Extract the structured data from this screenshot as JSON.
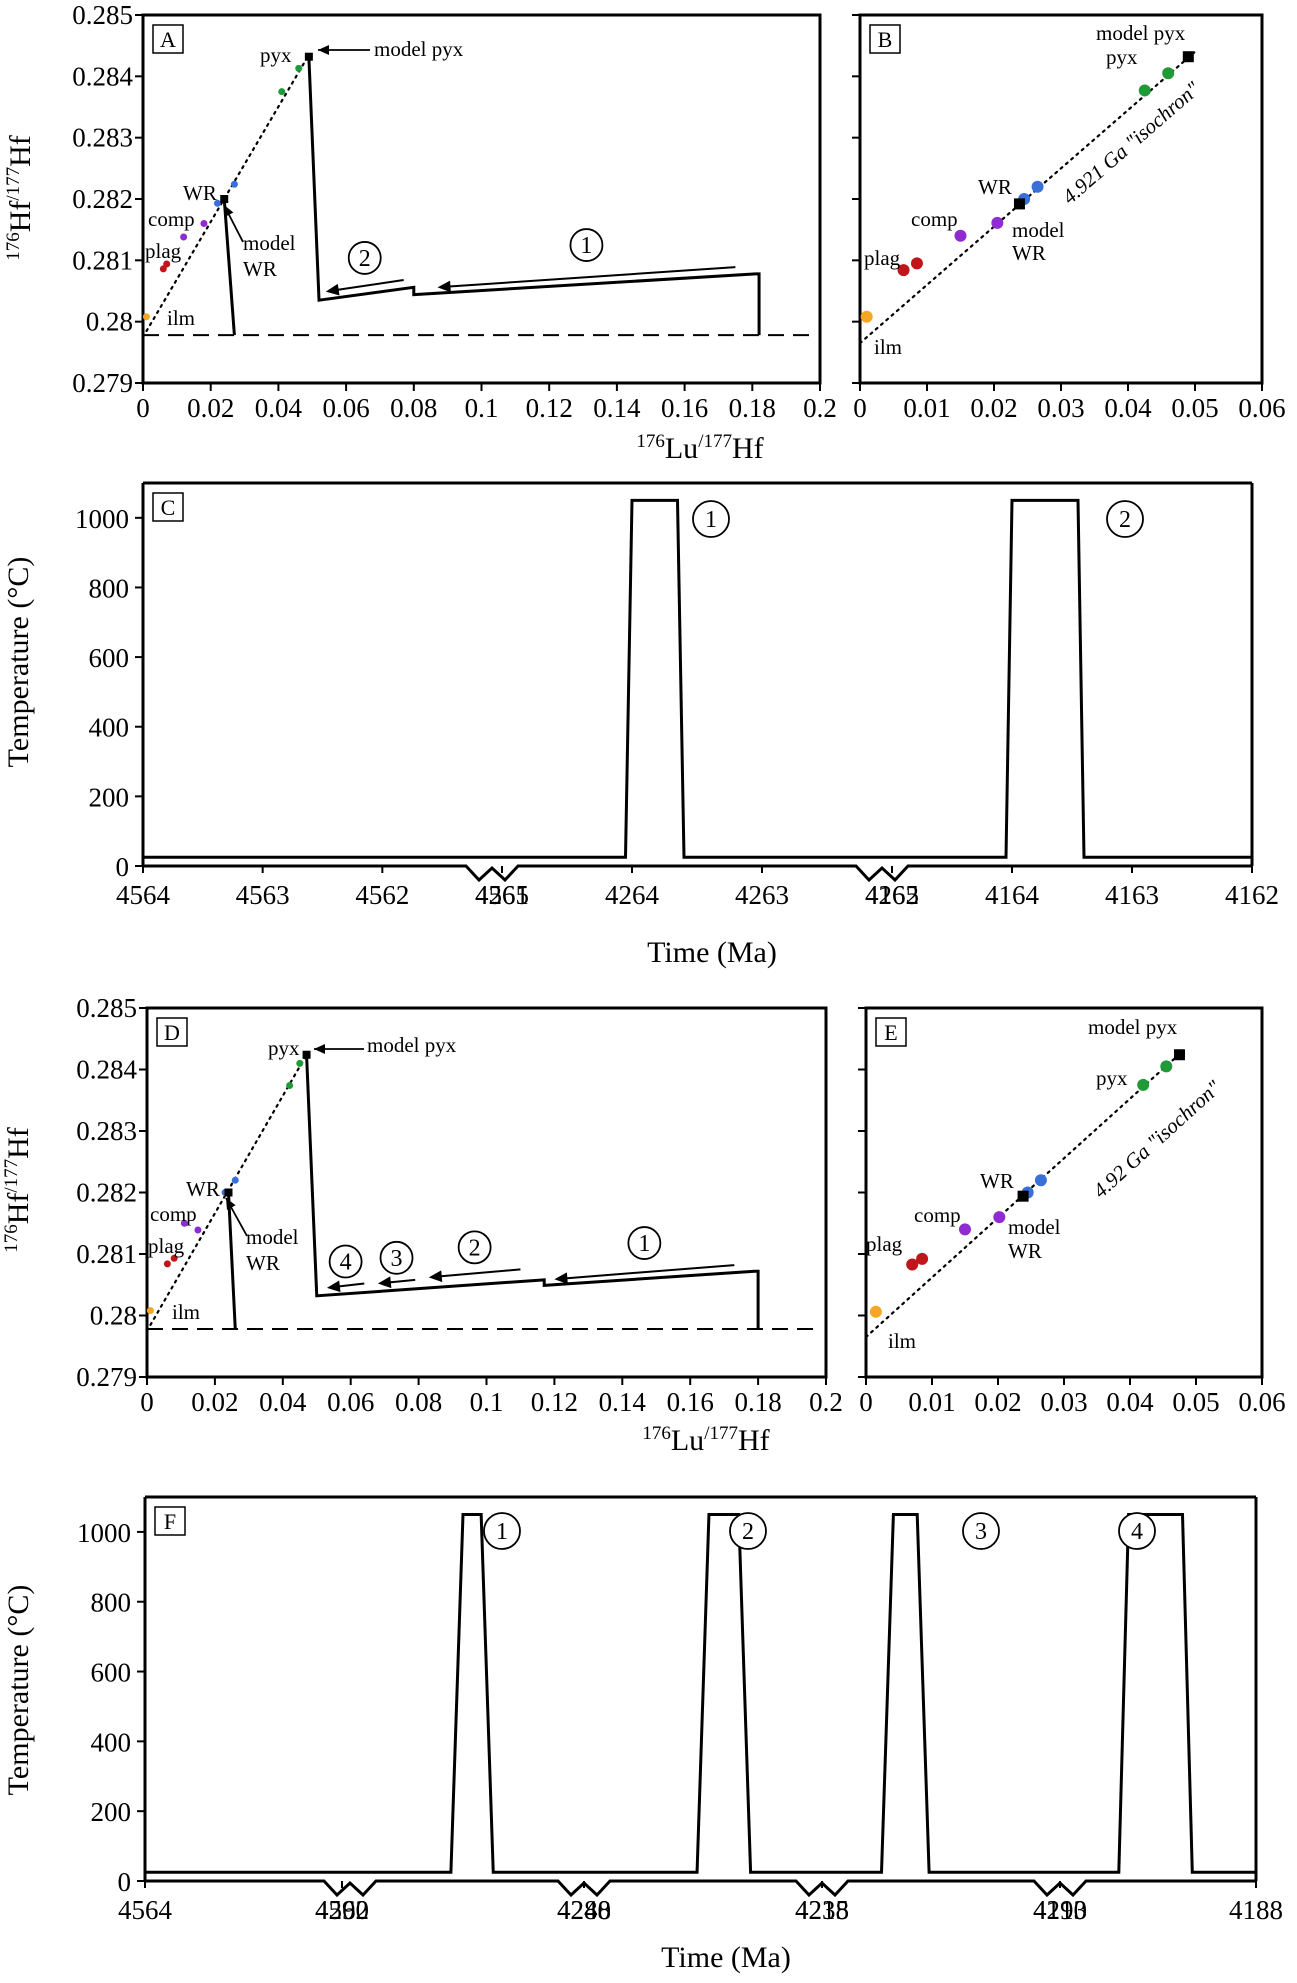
{
  "chart_data": [
    {
      "panel": "A",
      "type": "line",
      "xlabel": "176Lu/177Hf",
      "ylabel": "176Hf/177Hf",
      "xlim": [
        0,
        0.2
      ],
      "ylim": [
        0.279,
        0.285
      ],
      "xticks": [
        "0",
        "0.02",
        "0.04",
        "0.06",
        "0.08",
        "0.1",
        "0.12",
        "0.14",
        "0.16",
        "0.18",
        "0.2"
      ],
      "yticks": [
        "0.285",
        "0.284",
        "0.283",
        "0.282",
        "0.281",
        "0.28",
        "0.279"
      ],
      "reference_line": {
        "style": "dashed",
        "y": 0.27978
      },
      "isochron": {
        "style": "dotted",
        "x": [
          0,
          0.049
        ],
        "y": [
          0.27975,
          0.28435
        ]
      },
      "minerals": [
        {
          "name": "ilm",
          "color": "#f5a623",
          "x": [
            0.001
          ],
          "y": [
            0.28008
          ]
        },
        {
          "name": "plag",
          "color": "#c0161b",
          "x": [
            0.006,
            0.007
          ],
          "y": [
            0.28086,
            0.28094
          ]
        },
        {
          "name": "comp",
          "color": "#8e2bd1",
          "x": [
            0.012,
            0.018
          ],
          "y": [
            0.28138,
            0.2816
          ]
        },
        {
          "name": "WR",
          "color": "#3a6fd8",
          "x": [
            0.022,
            0.024,
            0.027
          ],
          "y": [
            0.28193,
            0.282,
            0.28224
          ]
        },
        {
          "name": "pyx",
          "color": "#1f9a36",
          "x": [
            0.041,
            0.046
          ],
          "y": [
            0.28375,
            0.28413
          ]
        }
      ],
      "model_points": [
        {
          "name": "model pyx",
          "x": 0.049,
          "y": 0.28432
        },
        {
          "name": "model WR",
          "x": 0.024,
          "y": 0.282
        }
      ],
      "series": [
        {
          "name": "model WR path",
          "x": [
            0.024,
            0.027,
            0.027
          ],
          "y": [
            0.282,
            0.27978,
            0.27978
          ]
        },
        {
          "name": "model pyx path",
          "x": [
            0.049,
            0.052,
            0.08,
            0.08,
            0.181,
            0.182,
            0.182
          ],
          "y": [
            0.28432,
            0.28035,
            0.28056,
            0.28044,
            0.28078,
            0.28078,
            0.27978
          ]
        }
      ],
      "events": [
        {
          "label": "1",
          "arrow_from": [
            0.175,
            0.28089
          ],
          "arrow_to": [
            0.087,
            0.28056
          ]
        },
        {
          "label": "2",
          "arrow_from": [
            0.077,
            0.28068
          ],
          "arrow_to": [
            0.054,
            0.28049
          ]
        }
      ],
      "annotations": [
        "model pyx",
        "pyx",
        "WR",
        "comp",
        "plag",
        "ilm",
        "model",
        "WR"
      ]
    },
    {
      "panel": "B",
      "type": "scatter",
      "xlim": [
        0,
        0.06
      ],
      "ylim": [
        0.279,
        0.285
      ],
      "xticks": [
        "0",
        "0.01",
        "0.02",
        "0.03",
        "0.04",
        "0.05",
        "0.06"
      ],
      "isochron": {
        "style": "dotted",
        "label": "4.921 Ga \"isochron\"",
        "x": [
          0,
          0.05
        ],
        "y": [
          0.27965,
          0.2844
        ]
      },
      "minerals": [
        {
          "name": "ilm",
          "color": "#f5a623",
          "x": [
            0.001
          ],
          "y": [
            0.28008
          ]
        },
        {
          "name": "plag",
          "color": "#c0161b",
          "x": [
            0.0065,
            0.0085
          ],
          "y": [
            0.28084,
            0.28095
          ]
        },
        {
          "name": "comp",
          "color": "#8e2bd1",
          "x": [
            0.015,
            0.0205
          ],
          "y": [
            0.2814,
            0.28161
          ]
        },
        {
          "name": "WR",
          "color": "#3a6fd8",
          "x": [
            0.0245,
            0.0265
          ],
          "y": [
            0.282,
            0.2822
          ]
        },
        {
          "name": "pyx",
          "color": "#1f9a36",
          "x": [
            0.0425,
            0.046
          ],
          "y": [
            0.28377,
            0.28405
          ]
        }
      ],
      "model_points": [
        {
          "name": "model pyx",
          "x": 0.049,
          "y": 0.28432
        },
        {
          "name": "model WR",
          "x": 0.0238,
          "y": 0.28192
        }
      ],
      "annotations": [
        "model pyx",
        "pyx",
        "WR",
        "comp",
        "plag",
        "ilm",
        "model",
        "WR"
      ]
    },
    {
      "panel": "C",
      "type": "line",
      "xlabel": "Time (Ma)",
      "ylabel": "Temperature (°C)",
      "ylim": [
        0,
        1100
      ],
      "yticks": [
        "1000",
        "800",
        "600",
        "400",
        "200",
        "0"
      ],
      "xticks": [
        "4564",
        "4563",
        "4562",
        "4561",
        "4265",
        "4264",
        "4263",
        "4262",
        "4165",
        "4164",
        "4163",
        "4162"
      ],
      "axis_breaks": 2,
      "series": [
        {
          "name": "thermal history",
          "x": [
            4564,
            4264.05,
            4264.0,
            4263.65,
            4263.6,
            4164.05,
            4164.0,
            4163.45,
            4163.4,
            4162
          ],
          "y": [
            25,
            25,
            1050,
            1050,
            25,
            25,
            1050,
            1050,
            25,
            25
          ]
        }
      ],
      "events": [
        "1",
        "2"
      ]
    },
    {
      "panel": "D",
      "type": "line",
      "xlabel": "176Lu/177Hf",
      "ylabel": "176Hf/177Hf",
      "xlim": [
        0,
        0.2
      ],
      "ylim": [
        0.279,
        0.285
      ],
      "xticks": [
        "0",
        "0.02",
        "0.04",
        "0.06",
        "0.08",
        "0.1",
        "0.12",
        "0.14",
        "0.16",
        "0.18",
        "0.2"
      ],
      "yticks": [
        "0.285",
        "0.284",
        "0.283",
        "0.282",
        "0.281",
        "0.28",
        "0.279"
      ],
      "reference_line": {
        "style": "dashed",
        "y": 0.27978
      },
      "isochron": {
        "style": "dotted",
        "x": [
          0,
          0.047
        ],
        "y": [
          0.27975,
          0.28424
        ]
      },
      "minerals": [
        {
          "name": "ilm",
          "color": "#f5a623",
          "x": [
            0.001
          ],
          "y": [
            0.28008
          ]
        },
        {
          "name": "plag",
          "color": "#c0161b",
          "x": [
            0.006,
            0.008
          ],
          "y": [
            0.28084,
            0.28093
          ]
        },
        {
          "name": "comp",
          "color": "#8e2bd1",
          "x": [
            0.011,
            0.015
          ],
          "y": [
            0.2815,
            0.28139
          ]
        },
        {
          "name": "WR",
          "color": "#3a6fd8",
          "x": [
            0.023,
            0.026
          ],
          "y": [
            0.282,
            0.2822
          ]
        },
        {
          "name": "pyx",
          "color": "#1f9a36",
          "x": [
            0.042,
            0.045
          ],
          "y": [
            0.28374,
            0.2841
          ]
        }
      ],
      "model_points": [
        {
          "name": "model pyx",
          "x": 0.047,
          "y": 0.28424
        },
        {
          "name": "model WR",
          "x": 0.024,
          "y": 0.282
        }
      ],
      "series": [
        {
          "name": "model WR path",
          "x": [
            0.024,
            0.026,
            0.026
          ],
          "y": [
            0.282,
            0.27978,
            0.27978
          ]
        },
        {
          "name": "model pyx path",
          "x": [
            0.047,
            0.05,
            0.117,
            0.117,
            0.179,
            0.18,
            0.18
          ],
          "y": [
            0.28424,
            0.28032,
            0.28058,
            0.28049,
            0.28072,
            0.28072,
            0.27978
          ]
        }
      ],
      "events": [
        {
          "label": "1",
          "arrow_from": [
            0.173,
            0.28082
          ],
          "arrow_to": [
            0.12,
            0.28059
          ]
        },
        {
          "label": "2",
          "arrow_from": [
            0.11,
            0.28075
          ],
          "arrow_to": [
            0.083,
            0.28062
          ]
        },
        {
          "label": "3",
          "arrow_from": [
            0.079,
            0.28058
          ],
          "arrow_to": [
            0.068,
            0.28052
          ]
        },
        {
          "label": "4",
          "arrow_from": [
            0.064,
            0.28052
          ],
          "arrow_to": [
            0.053,
            0.28045
          ]
        }
      ],
      "annotations": [
        "model pyx",
        "pyx",
        "WR",
        "comp",
        "plag",
        "ilm",
        "model",
        "WR"
      ]
    },
    {
      "panel": "E",
      "type": "scatter",
      "xlim": [
        0,
        0.06
      ],
      "ylim": [
        0.279,
        0.285
      ],
      "xticks": [
        "0",
        "0.01",
        "0.02",
        "0.03",
        "0.04",
        "0.05",
        "0.06"
      ],
      "isochron": {
        "style": "dotted",
        "label": "4.92 Ga \"isochron\"",
        "x": [
          0,
          0.048
        ],
        "y": [
          0.27965,
          0.2843
        ]
      },
      "minerals": [
        {
          "name": "ilm",
          "color": "#f5a623",
          "x": [
            0.0015
          ],
          "y": [
            0.28006
          ]
        },
        {
          "name": "plag",
          "color": "#c0161b",
          "x": [
            0.007,
            0.0085
          ],
          "y": [
            0.28083,
            0.28092
          ]
        },
        {
          "name": "comp",
          "color": "#8e2bd1",
          "x": [
            0.015,
            0.0202
          ],
          "y": [
            0.2814,
            0.2816
          ]
        },
        {
          "name": "WR",
          "color": "#3a6fd8",
          "x": [
            0.0245,
            0.0265
          ],
          "y": [
            0.282,
            0.2822
          ]
        },
        {
          "name": "pyx",
          "color": "#1f9a36",
          "x": [
            0.042,
            0.0455
          ],
          "y": [
            0.28375,
            0.28405
          ]
        }
      ],
      "model_points": [
        {
          "name": "model pyx",
          "x": 0.0475,
          "y": 0.28424
        },
        {
          "name": "model WR",
          "x": 0.0238,
          "y": 0.28194
        }
      ],
      "annotations": [
        "model pyx",
        "pyx",
        "WR",
        "comp",
        "plag",
        "ilm",
        "model",
        "WR"
      ]
    },
    {
      "panel": "F",
      "type": "line",
      "xlabel": "Time (Ma)",
      "ylabel": "Temperature (°C)",
      "ylim": [
        0,
        1100
      ],
      "yticks": [
        "1000",
        "800",
        "600",
        "400",
        "200",
        "0"
      ],
      "xticks": [
        "4564",
        "4562",
        "4290",
        "4288",
        "4240",
        "4238",
        "4215",
        "4213",
        "4190",
        "4188"
      ],
      "axis_breaks": 4,
      "series": [
        {
          "name": "thermal history",
          "x": [
            4564,
            4289.1,
            4289.0,
            4288.85,
            4288.75,
            4239.05,
            4238.95,
            4238.7,
            4238.6,
            4214.5,
            4214.4,
            4214.2,
            4214.1,
            4189.4,
            4189.3,
            4188.75,
            4188.65,
            4188
          ],
          "y": [
            25,
            25,
            1050,
            1050,
            25,
            25,
            1050,
            1050,
            25,
            25,
            1050,
            1050,
            25,
            25,
            1050,
            1050,
            25,
            25
          ]
        }
      ],
      "events": [
        "1",
        "2",
        "3",
        "4"
      ]
    }
  ]
}
